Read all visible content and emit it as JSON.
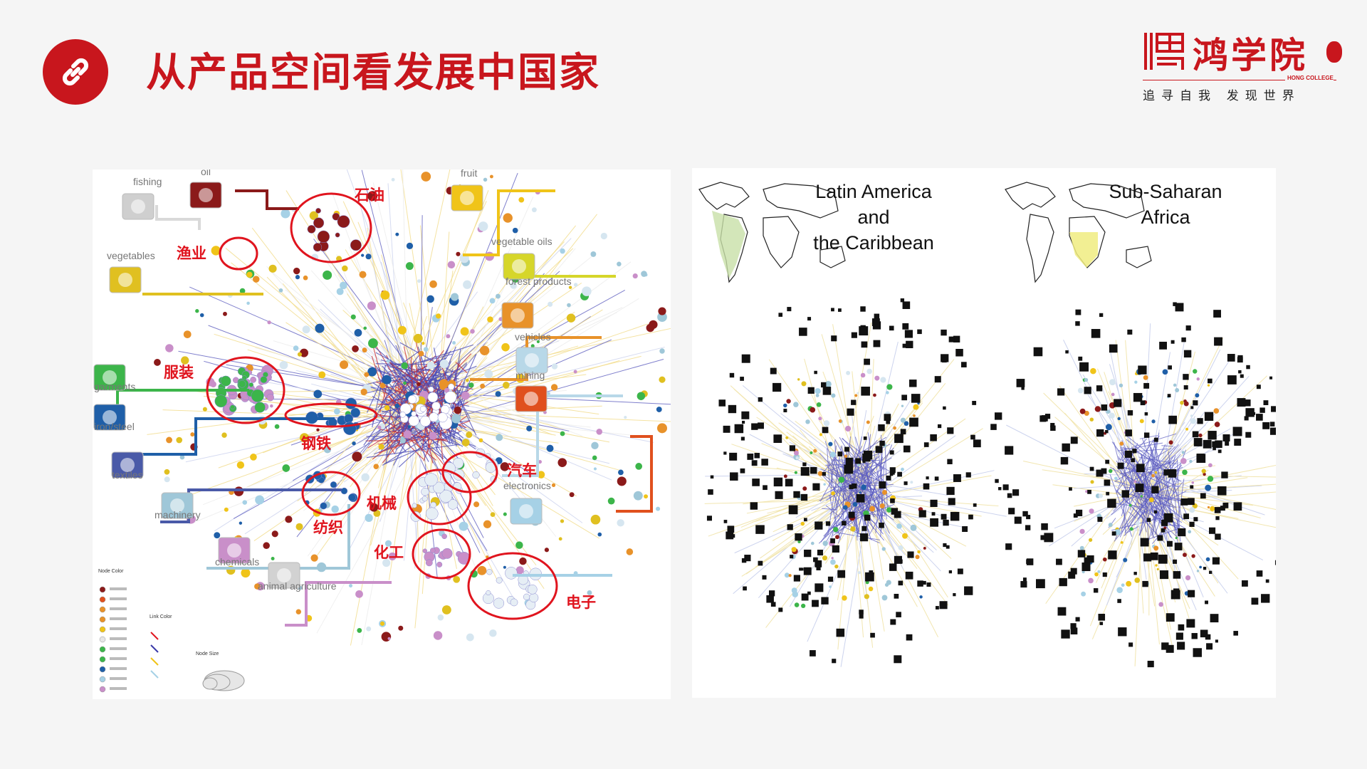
{
  "header": {
    "title": "从产品空间看发展中国家"
  },
  "logo": {
    "name": "鸿学院",
    "english": "HONG COLLEGE",
    "slogan": "追寻自我 发现世界"
  },
  "left_diagram": {
    "categories": [
      {
        "id": "fishing",
        "label": "fishing",
        "color": "#cfcfcf"
      },
      {
        "id": "oil",
        "label": "oil",
        "color": "#8b1a1a"
      },
      {
        "id": "fruit",
        "label": "fruit",
        "color": "#f0c419"
      },
      {
        "id": "vegetable_oils",
        "label": "vegetable oils",
        "color": "#d6d62a"
      },
      {
        "id": "vegetables",
        "label": "vegetables",
        "color": "#e0c020"
      },
      {
        "id": "forest",
        "label": "forest products",
        "color": "#e8922a"
      },
      {
        "id": "vehicles",
        "label": "vehicles",
        "color": "#b8d8e8"
      },
      {
        "id": "mining",
        "label": "mining",
        "color": "#e0501e"
      },
      {
        "id": "garments",
        "label": "garments",
        "color": "#3cb54a"
      },
      {
        "id": "iron_steel",
        "label": "iron/steel",
        "color": "#1f5fa8"
      },
      {
        "id": "textiles",
        "label": "textiles",
        "color": "#4a5aa8"
      },
      {
        "id": "machinery",
        "label": "machinery",
        "color": "#9fc7d8"
      },
      {
        "id": "electronics",
        "label": "electronics",
        "color": "#a6d1e6"
      },
      {
        "id": "chemicals",
        "label": "chemicals",
        "color": "#c98fc9"
      },
      {
        "id": "animal",
        "label": "animal agriculture",
        "color": "#d2d2d2"
      }
    ],
    "annotations": [
      {
        "id": "oil",
        "text": "石油"
      },
      {
        "id": "fishing",
        "text": "渔业"
      },
      {
        "id": "garments",
        "text": "服装"
      },
      {
        "id": "steel",
        "text": "钢铁"
      },
      {
        "id": "vehicles",
        "text": "汽车"
      },
      {
        "id": "machinery",
        "text": "机械"
      },
      {
        "id": "textiles",
        "text": "纺织"
      },
      {
        "id": "chemicals",
        "text": "化工"
      },
      {
        "id": "electronics",
        "text": "电子"
      }
    ],
    "legend": {
      "node_color_title": "Node Color",
      "link_color_title": "Link Color",
      "node_size_title": "Node Size"
    }
  },
  "right_diagram": {
    "maps": [
      {
        "id": "latam",
        "title_lines": [
          "Latin America",
          "and",
          "the Caribbean"
        ],
        "highlight": "#c8e0a8"
      },
      {
        "id": "ssa",
        "title_lines": [
          "Sub-Saharan",
          "Africa"
        ],
        "highlight": "#f0ec80"
      }
    ]
  }
}
